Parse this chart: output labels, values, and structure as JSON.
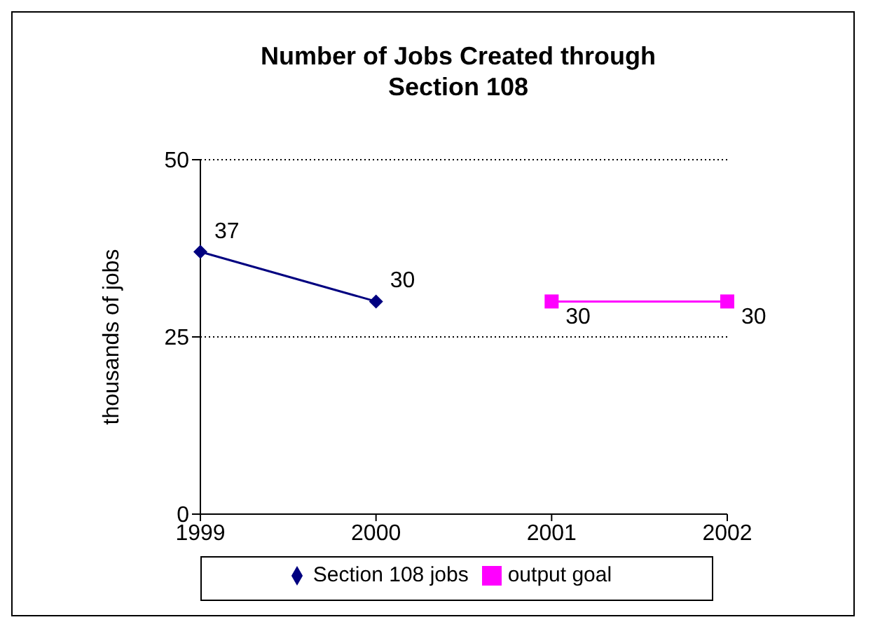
{
  "chart_data": {
    "type": "line",
    "title": "Number of Jobs Created through Section 108",
    "ylabel": "thousands of jobs",
    "categories": [
      "1999",
      "2000",
      "2001",
      "2002"
    ],
    "series": [
      {
        "name": "Section 108 jobs",
        "color": "#000080",
        "marker": "diamond",
        "values": [
          37,
          30,
          null,
          null
        ]
      },
      {
        "name": "output goal",
        "color": "#ff00ff",
        "marker": "square",
        "values": [
          null,
          null,
          30,
          30
        ]
      }
    ],
    "ylim": [
      0,
      50
    ],
    "yticks": [
      0,
      25,
      50
    ],
    "grid": "y",
    "legend": "bottom",
    "data_labels": true,
    "line_style": "solid"
  }
}
